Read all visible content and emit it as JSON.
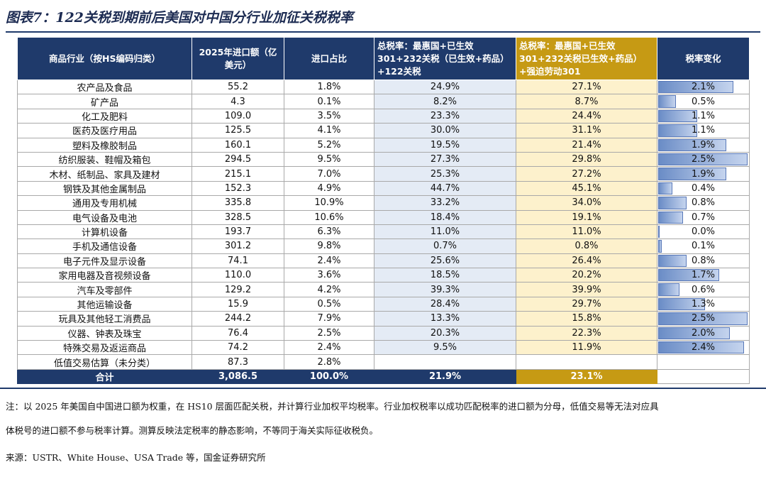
{
  "title": "图表7：122关税到期前后美国对中国分行业加征关税税率",
  "table": {
    "headers": {
      "industry": "商品行业（按HS编码归类）",
      "import_value": "2025年进口额（亿美元）",
      "import_share": "进口占比",
      "rate_base": "总税率：最惠国+已生效301+232关税（已生效+药品）+122关税",
      "rate_new": "总税率：最惠国+已生效301+232关税已生效+药品）+强迫劳动301",
      "change": "税率变化"
    },
    "rows": [
      {
        "industry": "农产品及食品",
        "import_value": "55.2",
        "share": "1.8%",
        "rate_base": "24.9%",
        "rate_new": "27.1%",
        "change": "2.1%",
        "change_value": 2.1
      },
      {
        "industry": "矿产品",
        "import_value": "4.3",
        "share": "0.1%",
        "rate_base": "8.2%",
        "rate_new": "8.7%",
        "change": "0.5%",
        "change_value": 0.5
      },
      {
        "industry": "化工及肥料",
        "import_value": "109.0",
        "share": "3.5%",
        "rate_base": "23.3%",
        "rate_new": "24.4%",
        "change": "1.1%",
        "change_value": 1.1
      },
      {
        "industry": "医药及医疗用品",
        "import_value": "125.5",
        "share": "4.1%",
        "rate_base": "30.0%",
        "rate_new": "31.1%",
        "change": "1.1%",
        "change_value": 1.1
      },
      {
        "industry": "塑料及橡胶制品",
        "import_value": "160.1",
        "share": "5.2%",
        "rate_base": "19.5%",
        "rate_new": "21.4%",
        "change": "1.9%",
        "change_value": 1.9
      },
      {
        "industry": "纺织服装、鞋帽及箱包",
        "import_value": "294.5",
        "share": "9.5%",
        "rate_base": "27.3%",
        "rate_new": "29.8%",
        "change": "2.5%",
        "change_value": 2.5
      },
      {
        "industry": "木材、纸制品、家具及建材",
        "import_value": "215.1",
        "share": "7.0%",
        "rate_base": "25.3%",
        "rate_new": "27.2%",
        "change": "1.9%",
        "change_value": 1.9
      },
      {
        "industry": "钢铁及其他金属制品",
        "import_value": "152.3",
        "share": "4.9%",
        "rate_base": "44.7%",
        "rate_new": "45.1%",
        "change": "0.4%",
        "change_value": 0.4
      },
      {
        "industry": "通用及专用机械",
        "import_value": "335.8",
        "share": "10.9%",
        "rate_base": "33.2%",
        "rate_new": "34.0%",
        "change": "0.8%",
        "change_value": 0.8
      },
      {
        "industry": "电气设备及电池",
        "import_value": "328.5",
        "share": "10.6%",
        "rate_base": "18.4%",
        "rate_new": "19.1%",
        "change": "0.7%",
        "change_value": 0.7
      },
      {
        "industry": "计算机设备",
        "import_value": "193.7",
        "share": "6.3%",
        "rate_base": "11.0%",
        "rate_new": "11.0%",
        "change": "0.0%",
        "change_value": 0.0
      },
      {
        "industry": "手机及通信设备",
        "import_value": "301.2",
        "share": "9.8%",
        "rate_base": "0.7%",
        "rate_new": "0.8%",
        "change": "0.1%",
        "change_value": 0.1
      },
      {
        "industry": "电子元件及显示设备",
        "import_value": "74.1",
        "share": "2.4%",
        "rate_base": "25.6%",
        "rate_new": "26.4%",
        "change": "0.8%",
        "change_value": 0.8
      },
      {
        "industry": "家用电器及音视频设备",
        "import_value": "110.0",
        "share": "3.6%",
        "rate_base": "18.5%",
        "rate_new": "20.2%",
        "change": "1.7%",
        "change_value": 1.7
      },
      {
        "industry": "汽车及零部件",
        "import_value": "129.2",
        "share": "4.2%",
        "rate_base": "39.3%",
        "rate_new": "39.9%",
        "change": "0.6%",
        "change_value": 0.6
      },
      {
        "industry": "其他运输设备",
        "import_value": "15.9",
        "share": "0.5%",
        "rate_base": "28.4%",
        "rate_new": "29.7%",
        "change": "1.3%",
        "change_value": 1.3
      },
      {
        "industry": "玩具及其他轻工消费品",
        "import_value": "244.2",
        "share": "7.9%",
        "rate_base": "13.3%",
        "rate_new": "15.8%",
        "change": "2.5%",
        "change_value": 2.5
      },
      {
        "industry": "仪器、钟表及珠宝",
        "import_value": "76.4",
        "share": "2.5%",
        "rate_base": "20.3%",
        "rate_new": "22.3%",
        "change": "2.0%",
        "change_value": 2.0
      },
      {
        "industry": "特殊交易及返运商品",
        "import_value": "74.2",
        "share": "2.4%",
        "rate_base": "9.5%",
        "rate_new": "11.9%",
        "change": "2.4%",
        "change_value": 2.4
      },
      {
        "industry": "低值交易估算（未分类）",
        "import_value": "87.3",
        "share": "2.8%",
        "rate_base": "",
        "rate_new": "",
        "change": "",
        "change_value": null
      }
    ],
    "total": {
      "label": "合计",
      "import_value": "3,086.5",
      "share": "100.0%",
      "rate_base": "21.9%",
      "rate_new": "23.1%",
      "change": ""
    }
  },
  "note": "注：以2025年美国自中国进口额为权重，在HS10层面匹配关税，并计算行业加权平均税率。行业加权税率以成功匹配税率的进口额为分母，低值交易等无法对应具体税号的进口额不参与税率计算。测算反映法定税率的静态影响，不等同于海关实际征收税负。",
  "note_line1": "注：以 2025 年美国自中国进口额为权重，在 HS10 层面匹配关税，并计算行业加权平均税率。行业加权税率以成功匹配税率的进口额为分母，低值交易等无法对应具",
  "note_line2": "体税号的进口额不参与税率计算。测算反映法定税率的静态影响，不等同于海关实际征收税负。",
  "source": "来源：USTR、White House、USA Trade 等，国金证券研究所",
  "colors": {
    "header": "#1f3a6b",
    "gold": "#c69a14",
    "base_fill": "#e4ebf5",
    "gold_fill": "#fdf1cc",
    "bar": "#6a8cc6"
  }
}
